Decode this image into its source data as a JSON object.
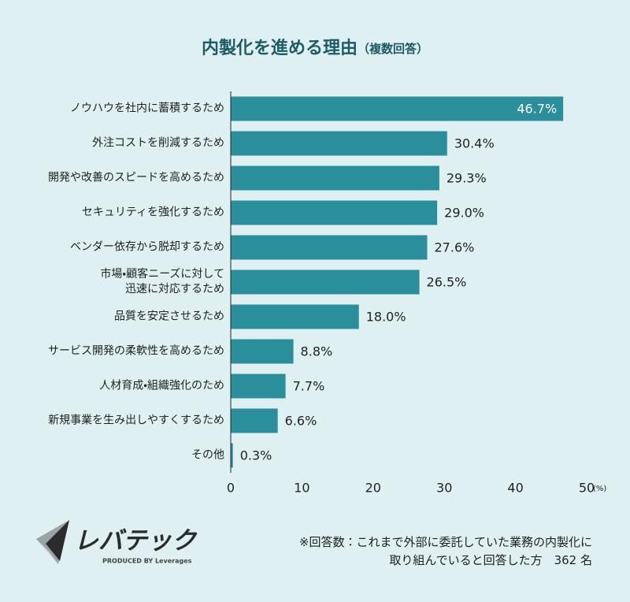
{
  "chart_data": {
    "type": "bar",
    "orientation": "horizontal",
    "title": "内製化を進める理由",
    "subtitle": "（複数回答）",
    "categories": [
      "ノウハウを社内に蓄積するため",
      "外注コストを削減するため",
      "開発や改善のスピードを高めるため",
      "セキュリティを強化するため",
      "ベンダー依存から脱却するため",
      "市場・顧客ニーズに対して\n迅速に対応するため",
      "品質を安定させるため",
      "サービス開発の柔軟性を高めるため",
      "人材育成・組織強化のため",
      "新規事業を生み出しやすくするため",
      "その他"
    ],
    "values": [
      46.7,
      30.4,
      29.3,
      29.0,
      27.6,
      26.5,
      18.0,
      8.8,
      7.7,
      6.6,
      0.3
    ],
    "value_labels": [
      "46.7%",
      "30.4%",
      "29.3%",
      "29.0%",
      "27.6%",
      "26.5%",
      "18.0%",
      "8.8%",
      "7.7%",
      "6.6%",
      "0.3%"
    ],
    "color": "#2b8f9b",
    "xlim": [
      0,
      50
    ],
    "xticks": [
      0,
      10,
      20,
      30,
      40,
      50
    ],
    "xlabel": "(%)",
    "grid": false
  },
  "logo": {
    "name": "レバテック",
    "tagline": "PRODUCED BY Leverages"
  },
  "footnote": "※回答数：これまで外部に委託していた業務の内製化に\n取り組んでいると回答した方　362 名"
}
